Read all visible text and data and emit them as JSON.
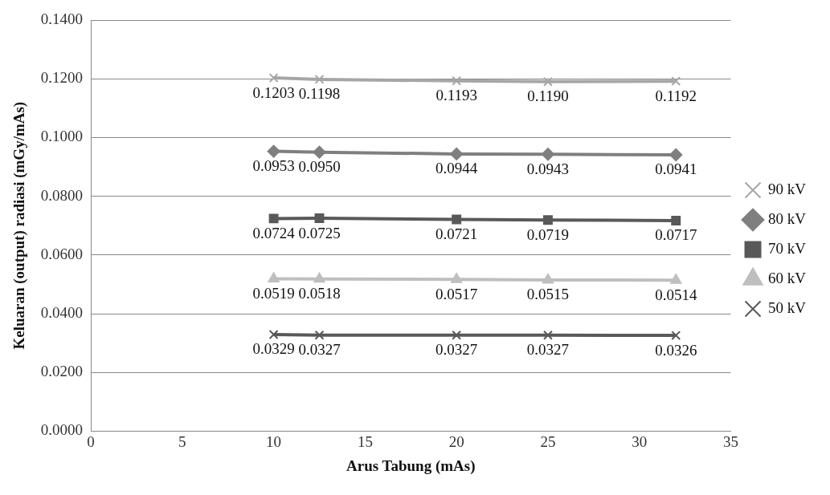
{
  "chart_data": {
    "type": "line",
    "xlabel": "Arus Tabung (mAs)",
    "ylabel": "Keluaran (output) radiasi (mGy/mAs)",
    "x": [
      10,
      12.5,
      20,
      25,
      32
    ],
    "series": [
      {
        "name": "90 kV",
        "color": "#a6a6a6",
        "marker": "cross",
        "values": [
          0.1203,
          0.1198,
          0.1193,
          0.119,
          0.1192
        ],
        "value_labels": [
          "0.1203",
          "0.1198",
          "0.1193",
          "0.1190",
          "0.1192"
        ]
      },
      {
        "name": "80 kV",
        "color": "#7f7f7f",
        "marker": "diamond",
        "values": [
          0.0953,
          0.095,
          0.0944,
          0.0943,
          0.0941
        ],
        "value_labels": [
          "0.0953",
          "0.0950",
          "0.0944",
          "0.0943",
          "0.0941"
        ]
      },
      {
        "name": "70 kV",
        "color": "#595959",
        "marker": "square",
        "values": [
          0.0724,
          0.0725,
          0.0721,
          0.0719,
          0.0717
        ],
        "value_labels": [
          "0.0724",
          "0.0725",
          "0.0721",
          "0.0719",
          "0.0717"
        ]
      },
      {
        "name": "60 kV",
        "color": "#bfbfbf",
        "marker": "triangle",
        "values": [
          0.0519,
          0.0518,
          0.0517,
          0.0515,
          0.0514
        ],
        "value_labels": [
          "0.0519",
          "0.0518",
          "0.0517",
          "0.0515",
          "0.0514"
        ]
      },
      {
        "name": "50 kV",
        "color": "#595959",
        "marker": "cross",
        "values": [
          0.0329,
          0.0327,
          0.0327,
          0.0327,
          0.0326
        ],
        "value_labels": [
          "0.0329",
          "0.0327",
          "0.0327",
          "0.0327",
          "0.0326"
        ]
      }
    ],
    "xlim": [
      0,
      35
    ],
    "xticks": [
      0,
      5,
      10,
      15,
      20,
      25,
      30,
      35
    ],
    "ylim": [
      0,
      0.14
    ],
    "yticks": [
      {
        "value": 0,
        "label": "0.0000"
      },
      {
        "value": 0.02,
        "label": "0.0200"
      },
      {
        "value": 0.04,
        "label": "0.0400"
      },
      {
        "value": 0.06,
        "label": "0.0600"
      },
      {
        "value": 0.08,
        "label": "0.0800"
      },
      {
        "value": 0.1,
        "label": "0.1000"
      },
      {
        "value": 0.12,
        "label": "0.1200"
      },
      {
        "value": 0.14,
        "label": "0.1400"
      }
    ],
    "grid": "y",
    "legend": "right",
    "line_style": "solid"
  }
}
